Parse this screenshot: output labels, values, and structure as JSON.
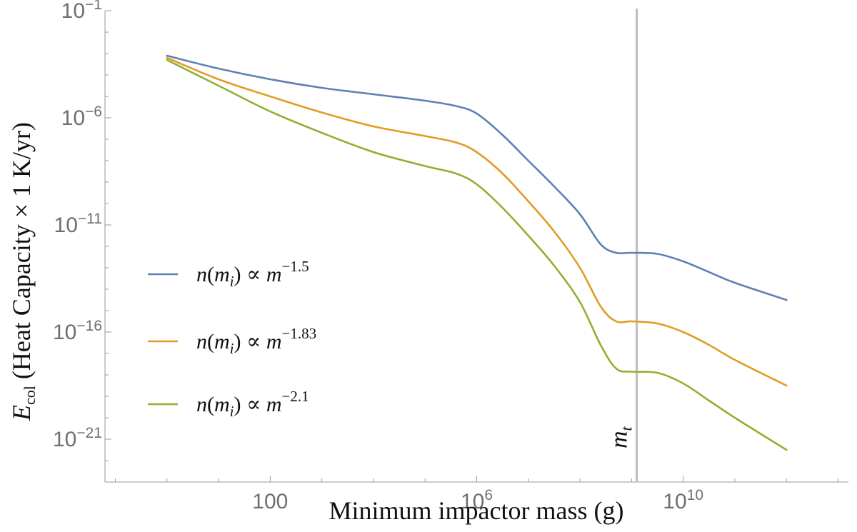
{
  "chart_data": {
    "type": "line",
    "title": "",
    "xlabel": "Minimum impactor mass (g)",
    "ylabel": "Ė_col (Heat Capacity × 1 K/yr)",
    "ylabel_parts": {
      "symbol": "E",
      "subscript": "col",
      "rest": "(Heat Capacity × 1 K/yr)"
    },
    "x_scale": "log10",
    "y_scale": "log10",
    "xlim_log10": [
      -1.2,
      13.2
    ],
    "ylim_log10": [
      -23,
      -1
    ],
    "x_ticks": [
      {
        "log": 2,
        "base": "100",
        "exp": ""
      },
      {
        "log": 6,
        "base": "10",
        "exp": "6"
      },
      {
        "log": 10,
        "base": "10",
        "exp": "10"
      }
    ],
    "y_ticks": [
      {
        "log": -1,
        "base": "10",
        "exp": "−1"
      },
      {
        "log": -6,
        "base": "10",
        "exp": "−6"
      },
      {
        "log": -11,
        "base": "10",
        "exp": "−11"
      },
      {
        "log": -16,
        "base": "10",
        "exp": "−16"
      },
      {
        "log": -21,
        "base": "10",
        "exp": "−21"
      }
    ],
    "series": [
      {
        "name": "n(m_i) ∝ m^-1.5",
        "label": {
          "func": "n",
          "arg": "m",
          "sub": "i",
          "rel": "∝",
          "var": "m",
          "exp": "−1.5"
        },
        "color": "#5e81b5",
        "x_log10": [
          0.0,
          1.0,
          2.0,
          3.0,
          4.0,
          5.0,
          5.6,
          6.0,
          6.5,
          7.0,
          7.5,
          8.0,
          8.4,
          8.7,
          9.0,
          9.5,
          10.0,
          10.5,
          11.0,
          12.0
        ],
        "y_log10": [
          -3.1,
          -3.7,
          -4.2,
          -4.6,
          -4.9,
          -5.2,
          -5.45,
          -5.8,
          -6.8,
          -8.0,
          -9.2,
          -10.5,
          -11.9,
          -12.3,
          -12.3,
          -12.35,
          -12.7,
          -13.2,
          -13.7,
          -14.5
        ]
      },
      {
        "name": "n(m_i) ∝ m^-1.83",
        "label": {
          "func": "n",
          "arg": "m",
          "sub": "i",
          "rel": "∝",
          "var": "m",
          "exp": "−1.83"
        },
        "color": "#e19c24",
        "x_log10": [
          0.0,
          1.0,
          2.0,
          3.0,
          4.0,
          5.0,
          5.6,
          6.0,
          6.5,
          7.0,
          7.5,
          8.0,
          8.4,
          8.7,
          9.0,
          9.5,
          10.0,
          10.5,
          11.0,
          12.0
        ],
        "y_log10": [
          -3.2,
          -4.2,
          -5.0,
          -5.75,
          -6.4,
          -6.85,
          -7.15,
          -7.6,
          -8.6,
          -9.9,
          -11.3,
          -13.0,
          -14.8,
          -15.5,
          -15.5,
          -15.6,
          -16.0,
          -16.6,
          -17.3,
          -18.5
        ]
      },
      {
        "name": "n(m_i) ∝ m^-2.1",
        "label": {
          "func": "n",
          "arg": "m",
          "sub": "i",
          "rel": "∝",
          "var": "m",
          "exp": "−2.1"
        },
        "color": "#8fb032",
        "x_log10": [
          0.0,
          1.0,
          2.0,
          3.0,
          4.0,
          5.0,
          5.6,
          6.0,
          6.5,
          7.0,
          7.5,
          8.0,
          8.4,
          8.7,
          9.0,
          9.5,
          10.0,
          10.5,
          11.0,
          12.0
        ],
        "y_log10": [
          -3.3,
          -4.5,
          -5.7,
          -6.7,
          -7.6,
          -8.25,
          -8.6,
          -9.1,
          -10.2,
          -11.5,
          -12.9,
          -14.6,
          -16.6,
          -17.7,
          -17.85,
          -17.9,
          -18.4,
          -19.2,
          -20.0,
          -21.5
        ]
      }
    ],
    "vertical_line": {
      "x_log10": 9.1,
      "label": "m",
      "label_sub": "t",
      "color": "#bdbdbd"
    },
    "legend": "middle-left",
    "grid": false
  }
}
